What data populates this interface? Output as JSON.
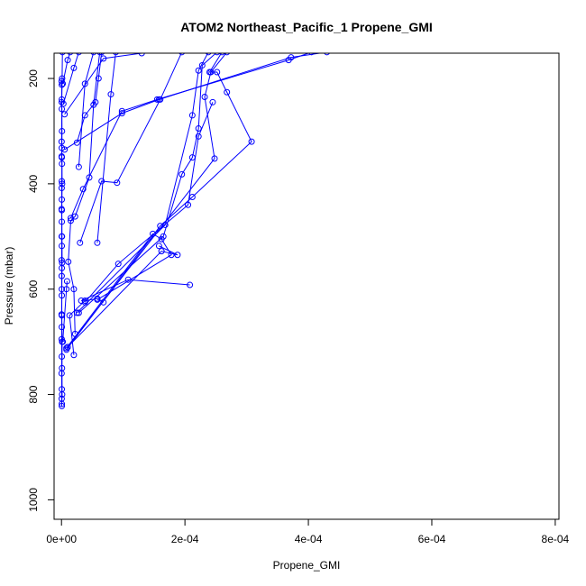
{
  "chart_data": {
    "type": "line",
    "title": "ATOM2 Northeast_Pacific_1 Propene_GMI",
    "xlabel": "Propene_GMI",
    "ylabel": "Pressure (mbar)",
    "xlim": [
      -1.2e-05,
      0.000806
    ],
    "ylim": [
      1037,
      152
    ],
    "y_reversed": true,
    "grid": false,
    "legend": "none",
    "series_color": "#0000ff",
    "x_ticks": [
      {
        "value": 0,
        "label": "0e+00"
      },
      {
        "value": 0.0002,
        "label": "2e-04"
      },
      {
        "value": 0.0004,
        "label": "4e-04"
      },
      {
        "value": 0.0006,
        "label": "6e-04"
      },
      {
        "value": 0.0008,
        "label": "8e-04"
      }
    ],
    "y_ticks": [
      {
        "value": 200,
        "label": "200"
      },
      {
        "value": 400,
        "label": "400"
      },
      {
        "value": 600,
        "label": "600"
      },
      {
        "value": 800,
        "label": "800"
      },
      {
        "value": 1000,
        "label": "1000"
      }
    ],
    "series": [
      {
        "points": [
          [
            1.5e-06,
            150
          ],
          [
            1e-06,
            200
          ],
          [
            5e-07,
            240
          ],
          [
            8e-07,
            300
          ],
          [
            5e-07,
            350
          ],
          [
            1e-06,
            400
          ],
          [
            5e-07,
            450
          ],
          [
            8e-07,
            500
          ],
          [
            1e-06,
            550
          ],
          [
            5e-07,
            600
          ],
          [
            5e-07,
            650
          ],
          [
            1e-06,
            700
          ],
          [
            8e-07,
            750
          ],
          [
            1e-06,
            800
          ],
          [
            5e-07,
            818
          ]
        ]
      },
      {
        "points": [
          [
            2e-07,
            205
          ],
          [
            5e-07,
            212
          ],
          [
            3e-07,
            245
          ],
          [
            5e-07,
            258
          ],
          [
            2e-07,
            320
          ],
          [
            5e-07,
            332
          ],
          [
            3e-07,
            348
          ],
          [
            8e-07,
            362
          ],
          [
            5e-07,
            395
          ],
          [
            3e-07,
            408
          ],
          [
            5e-07,
            430
          ],
          [
            2e-07,
            448
          ],
          [
            5e-07,
            472
          ],
          [
            3e-07,
            500
          ],
          [
            5e-07,
            518
          ],
          [
            2e-07,
            545
          ],
          [
            5e-07,
            560
          ],
          [
            3e-07,
            575
          ],
          [
            5e-07,
            612
          ],
          [
            2e-07,
            648
          ],
          [
            5e-07,
            672
          ],
          [
            3e-07,
            695
          ],
          [
            5e-07,
            728
          ],
          [
            2e-07,
            760
          ],
          [
            5e-07,
            790
          ],
          [
            3e-07,
            808
          ],
          [
            5e-07,
            822
          ]
        ]
      },
      {
        "points": [
          [
            8e-06,
            600
          ],
          [
            9e-06,
            585
          ],
          [
            2e-06,
            700
          ]
        ]
      },
      {
        "points": [
          [
            2.2e-05,
            685
          ],
          [
            2e-05,
            600
          ],
          [
            1.1e-05,
            548
          ],
          [
            1.5e-05,
            470
          ],
          [
            2.2e-05,
            462
          ],
          [
            4.5e-05,
            388
          ],
          [
            5.2e-05,
            250
          ],
          [
            6.2e-05,
            150
          ]
        ]
      },
      {
        "points": [
          [
            2e-05,
            725
          ],
          [
            1.3e-05,
            650
          ],
          [
            3.8e-05,
            622
          ],
          [
            5.8e-05,
            618
          ],
          [
            6.8e-05,
            625
          ]
        ]
      },
      {
        "points": [
          [
            3.2e-05,
            622
          ],
          [
            0.000108,
            582
          ],
          [
            0.000208,
            592
          ]
        ]
      },
      {
        "points": [
          [
            8e-06,
            712
          ],
          [
            0.000148,
            495
          ],
          [
            0.000162,
            505
          ],
          [
            0.000178,
            535
          ],
          [
            5.8e-05,
            620
          ]
        ]
      },
      {
        "points": [
          [
            1e-05,
            710
          ],
          [
            0.000162,
            528
          ],
          [
            0.000188,
            535
          ],
          [
            0.000158,
            518
          ]
        ]
      },
      {
        "points": [
          [
            3.8e-05,
            625
          ],
          [
            9.2e-05,
            552
          ],
          [
            0.000205,
            440
          ],
          [
            0.000222,
            310
          ],
          [
            0.000245,
            245
          ]
        ]
      },
      {
        "points": [
          [
            2.8e-05,
            645
          ],
          [
            0.000165,
            500
          ],
          [
            0.000195,
            382
          ],
          [
            0.000212,
            350
          ],
          [
            0.000222,
            295
          ],
          [
            0.000228,
            175
          ],
          [
            0.000252,
            150
          ]
        ]
      },
      {
        "points": [
          [
            2.5e-05,
            645
          ],
          [
            0.000168,
            478
          ],
          [
            0.000212,
            270
          ],
          [
            0.000222,
            185
          ],
          [
            0.000238,
            150
          ]
        ]
      },
      {
        "points": [
          [
            1e-05,
            710
          ],
          [
            0.000248,
            352
          ],
          [
            0.000232,
            235
          ],
          [
            0.000242,
            188
          ],
          [
            0.000268,
            150
          ]
        ]
      },
      {
        "points": [
          [
            8e-06,
            715
          ],
          [
            0.00016,
            480
          ],
          [
            0.000212,
            425
          ],
          [
            0.000308,
            320
          ],
          [
            0.000268,
            226
          ],
          [
            0.000252,
            188
          ],
          [
            0.00024,
            188
          ],
          [
            0.00026,
            150
          ]
        ]
      },
      {
        "points": [
          [
            1.5e-05,
            465
          ],
          [
            3.5e-05,
            410
          ],
          [
            9.8e-05,
            262
          ],
          [
            0.000155,
            240
          ],
          [
            0.000368,
            165
          ],
          [
            0.000405,
            150
          ]
        ]
      },
      {
        "points": [
          [
            5e-06,
            335
          ],
          [
            9.8e-05,
            266
          ],
          [
            0.000158,
            240
          ],
          [
            0.000372,
            160
          ],
          [
            0.00043,
            150
          ]
        ]
      },
      {
        "points": [
          [
            5e-06,
            268
          ],
          [
            6.8e-05,
            162
          ],
          [
            0.00013,
            152
          ]
        ]
      },
      {
        "points": [
          [
            5.8e-05,
            512
          ],
          [
            8e-05,
            230
          ],
          [
            8.8e-05,
            150
          ]
        ]
      },
      {
        "points": [
          [
            3e-05,
            512
          ],
          [
            6.5e-05,
            395
          ],
          [
            9e-05,
            398
          ],
          [
            0.00016,
            240
          ],
          [
            0.000195,
            150
          ]
        ]
      },
      {
        "points": [
          [
            2.8e-05,
            368
          ],
          [
            3.8e-05,
            210
          ],
          [
            5.2e-05,
            150
          ]
        ]
      },
      {
        "points": [
          [
            2.5e-05,
            322
          ],
          [
            3.8e-05,
            270
          ],
          [
            5.5e-05,
            245
          ],
          [
            6e-05,
            200
          ],
          [
            6.5e-05,
            150
          ]
        ]
      },
      {
        "points": [
          [
            2e-06,
            210
          ],
          [
            1e-05,
            165
          ],
          [
            1.4e-05,
            150
          ]
        ]
      },
      {
        "points": [
          [
            3e-06,
            248
          ],
          [
            2e-05,
            180
          ],
          [
            2.8e-05,
            150
          ]
        ]
      }
    ]
  }
}
